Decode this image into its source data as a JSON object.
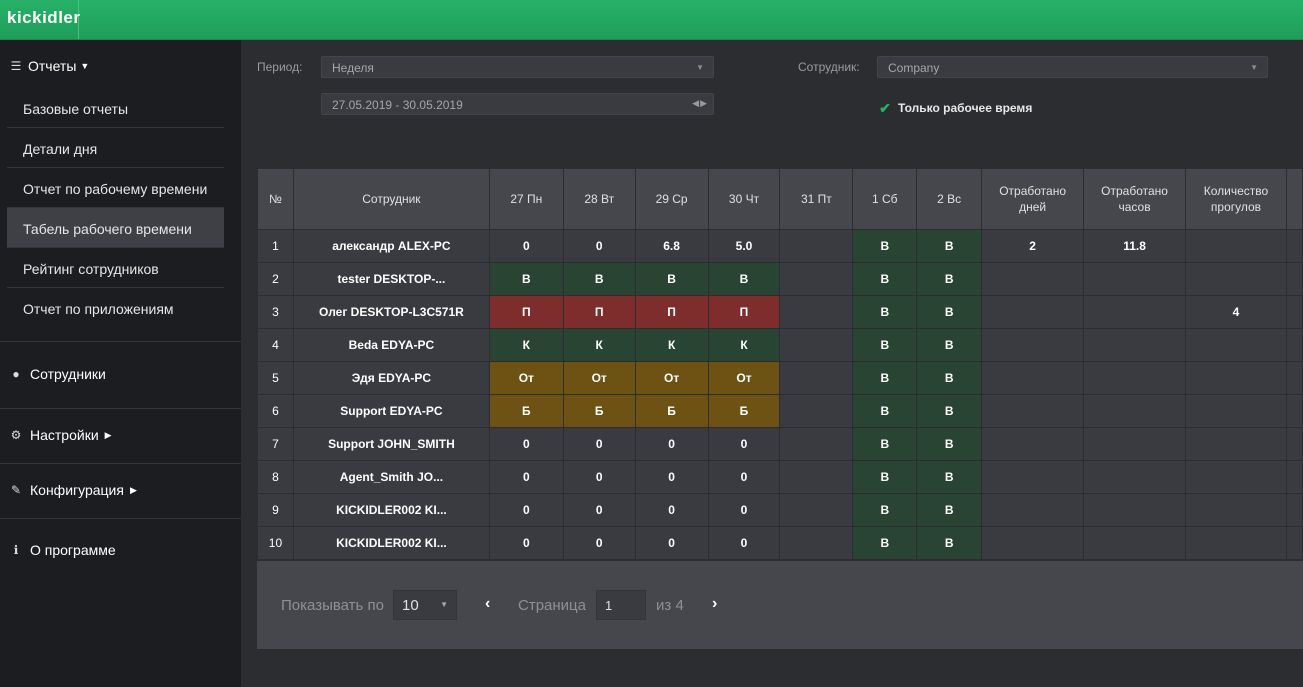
{
  "header": {
    "logo": "kickidler"
  },
  "sidebar": {
    "reports_label": "Отчеты",
    "report_items": [
      {
        "label": "Базовые отчеты"
      },
      {
        "label": "Детали дня"
      },
      {
        "label": "Отчет по рабочему времени"
      },
      {
        "label": "Табель рабочего времени",
        "active": true
      },
      {
        "label": "Рейтинг сотрудников"
      },
      {
        "label": "Отчет по приложениям"
      }
    ],
    "employees_label": "Сотрудники",
    "settings_label": "Настройки",
    "config_label": "Конфигурация",
    "about_label": "О программе"
  },
  "filters": {
    "period_label": "Период:",
    "period_value": "Неделя",
    "date_range": "27.05.2019 - 30.05.2019",
    "employee_label": "Сотрудник:",
    "employee_value": "Company",
    "work_time_only": "Только рабочее время"
  },
  "table": {
    "headers": [
      "№",
      "Сотрудник",
      "27 Пн",
      "28 Вт",
      "29 Ср",
      "30 Чт",
      "31 Пт",
      "1 Сб",
      "2 Вс",
      "Отработано дней",
      "Отработано часов",
      "Количество прогулов"
    ],
    "rows": [
      {
        "n": "1",
        "name": "александр ALEX-PC",
        "d": [
          "0",
          "0",
          "6.8",
          "5.0",
          "",
          "В",
          "В"
        ],
        "days": "2",
        "hours": "11.8",
        "absences": ""
      },
      {
        "n": "2",
        "name": "tester DESKTOP-...",
        "d": [
          "В",
          "В",
          "В",
          "В",
          "",
          "В",
          "В"
        ],
        "days": "",
        "hours": "",
        "absences": ""
      },
      {
        "n": "3",
        "name": "Олег DESKTOP-L3C571R",
        "d": [
          "П",
          "П",
          "П",
          "П",
          "",
          "В",
          "В"
        ],
        "days": "",
        "hours": "",
        "absences": "4"
      },
      {
        "n": "4",
        "name": "Beda EDYA-PC",
        "d": [
          "К",
          "К",
          "К",
          "К",
          "",
          "В",
          "В"
        ],
        "days": "",
        "hours": "",
        "absences": ""
      },
      {
        "n": "5",
        "name": "Эдя EDYA-PC",
        "d": [
          "От",
          "От",
          "От",
          "От",
          "",
          "В",
          "В"
        ],
        "days": "",
        "hours": "",
        "absences": ""
      },
      {
        "n": "6",
        "name": "Support EDYA-PC",
        "d": [
          "Б",
          "Б",
          "Б",
          "Б",
          "",
          "В",
          "В"
        ],
        "days": "",
        "hours": "",
        "absences": ""
      },
      {
        "n": "7",
        "name": "Support JOHN_SMITH",
        "d": [
          "0",
          "0",
          "0",
          "0",
          "",
          "В",
          "В"
        ],
        "days": "",
        "hours": "",
        "absences": ""
      },
      {
        "n": "8",
        "name": "Agent_Smith JO...",
        "d": [
          "0",
          "0",
          "0",
          "0",
          "",
          "В",
          "В"
        ],
        "days": "",
        "hours": "",
        "absences": ""
      },
      {
        "n": "9",
        "name": "KICKIDLER002 KI...",
        "d": [
          "0",
          "0",
          "0",
          "0",
          "",
          "В",
          "В"
        ],
        "days": "",
        "hours": "",
        "absences": ""
      },
      {
        "n": "10",
        "name": "KICKIDLER002 KI...",
        "d": [
          "0",
          "0",
          "0",
          "0",
          "",
          "В",
          "В"
        ],
        "days": "",
        "hours": "",
        "absences": ""
      }
    ]
  },
  "pagination": {
    "show_label": "Показывать по",
    "per_page": "10",
    "page_label": "Страница",
    "page": "1",
    "of_label": "из",
    "total_pages": "4"
  }
}
